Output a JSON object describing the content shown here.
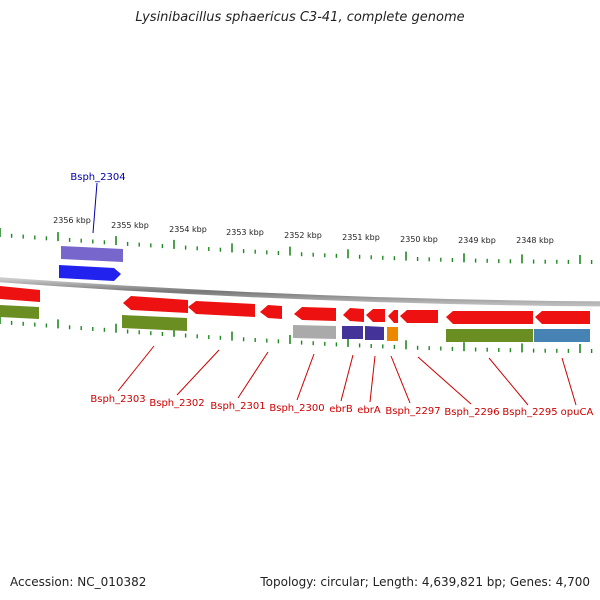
{
  "title": "Lysinibacillus sphaericus C3-41, complete genome",
  "footer": {
    "accession": "Accession: NC_010382",
    "summary": "Topology: circular; Length: 4,639,821 bp; Genes: 4,700"
  },
  "scale_labels": [
    "2356 kbp",
    "2355 kbp",
    "2354 kbp",
    "2353 kbp",
    "2352 kbp",
    "2351 kbp",
    "2350 kbp",
    "2349 kbp",
    "2348 kbp"
  ],
  "upper_gene_label": "Bsph_2304",
  "lower_gene_labels": [
    "Bsph_2303",
    "Bsph_2302",
    "Bsph_2301",
    "Bsph_2300",
    "ebrB",
    "ebrA",
    "Bsph_2297",
    "Bsph_2296",
    "Bsph_2295",
    "opuCA"
  ],
  "colors": {
    "cds": "#ee1111",
    "cds_forward": "#2222ee",
    "cog_purple": "#7766cc",
    "cog_olive": "#6b8e23",
    "cog_gray": "#aaaaaa",
    "cog_darkblue": "#443399",
    "cog_orange": "#ee8800",
    "cog_steelblue": "#4682b4",
    "tick": "#228822",
    "backbone": "#888888",
    "label_forward": "#0000aa",
    "label_reverse": "#cc0000"
  }
}
